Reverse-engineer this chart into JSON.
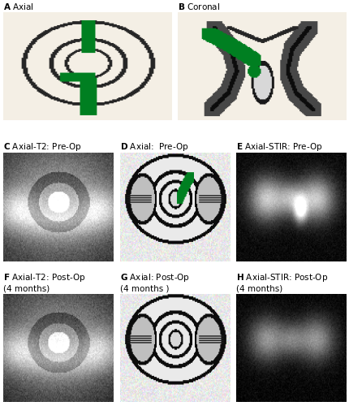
{
  "bg_color": "#ffffff",
  "panels": [
    {
      "label": "A",
      "subtitle": "Axial",
      "type": "schematic_axial"
    },
    {
      "label": "B",
      "subtitle": "Coronal",
      "type": "schematic_coronal"
    },
    {
      "label": "C",
      "subtitle": "Axial-T2: Pre-Op",
      "type": "mri_gray_preop"
    },
    {
      "label": "D",
      "subtitle": "Axial:  Pre-Op",
      "type": "sketch_green"
    },
    {
      "label": "E",
      "subtitle": "Axial-STIR: Pre-Op",
      "type": "stir_preop"
    },
    {
      "label": "F",
      "subtitle": "Axial-T2: Post-Op\n(4 months)",
      "type": "mri_gray_postop"
    },
    {
      "label": "G",
      "subtitle": "Axial: Post-Op\n(4 months )",
      "type": "sketch_plain"
    },
    {
      "label": "H",
      "subtitle": "Axial-STIR: Post-Op\n(4 months)",
      "type": "stir_postop"
    }
  ],
  "green": [
    0.0,
    0.5,
    0.13
  ],
  "dark_gray": [
    0.15,
    0.15,
    0.15
  ],
  "schematic_bg": [
    0.96,
    0.94,
    0.9
  ],
  "label_fontsize": 7.5
}
